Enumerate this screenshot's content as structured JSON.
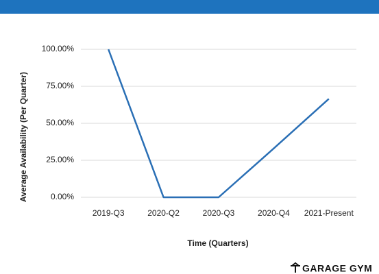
{
  "chart_data": {
    "type": "line",
    "categories": [
      "2019-Q3",
      "2020-Q2",
      "2020-Q3",
      "2020-Q4",
      "2021-Present"
    ],
    "series": [
      {
        "name": "Average Availability",
        "color": "#2a6fb5",
        "values": [
          100,
          0,
          0,
          33,
          66.5
        ]
      }
    ],
    "ylim": [
      0,
      100
    ],
    "yticks": [
      {
        "value": 0,
        "label": "0.00%"
      },
      {
        "value": 25,
        "label": "25.00%"
      },
      {
        "value": 50,
        "label": "50.00%"
      },
      {
        "value": 75,
        "label": "75.00%"
      },
      {
        "value": 100,
        "label": "100.00%"
      }
    ],
    "grid": true,
    "xlabel": "Time (Quarters)",
    "ylabel": "Average Availability (Per Quarter)"
  },
  "logo": "GARAGE GYM"
}
